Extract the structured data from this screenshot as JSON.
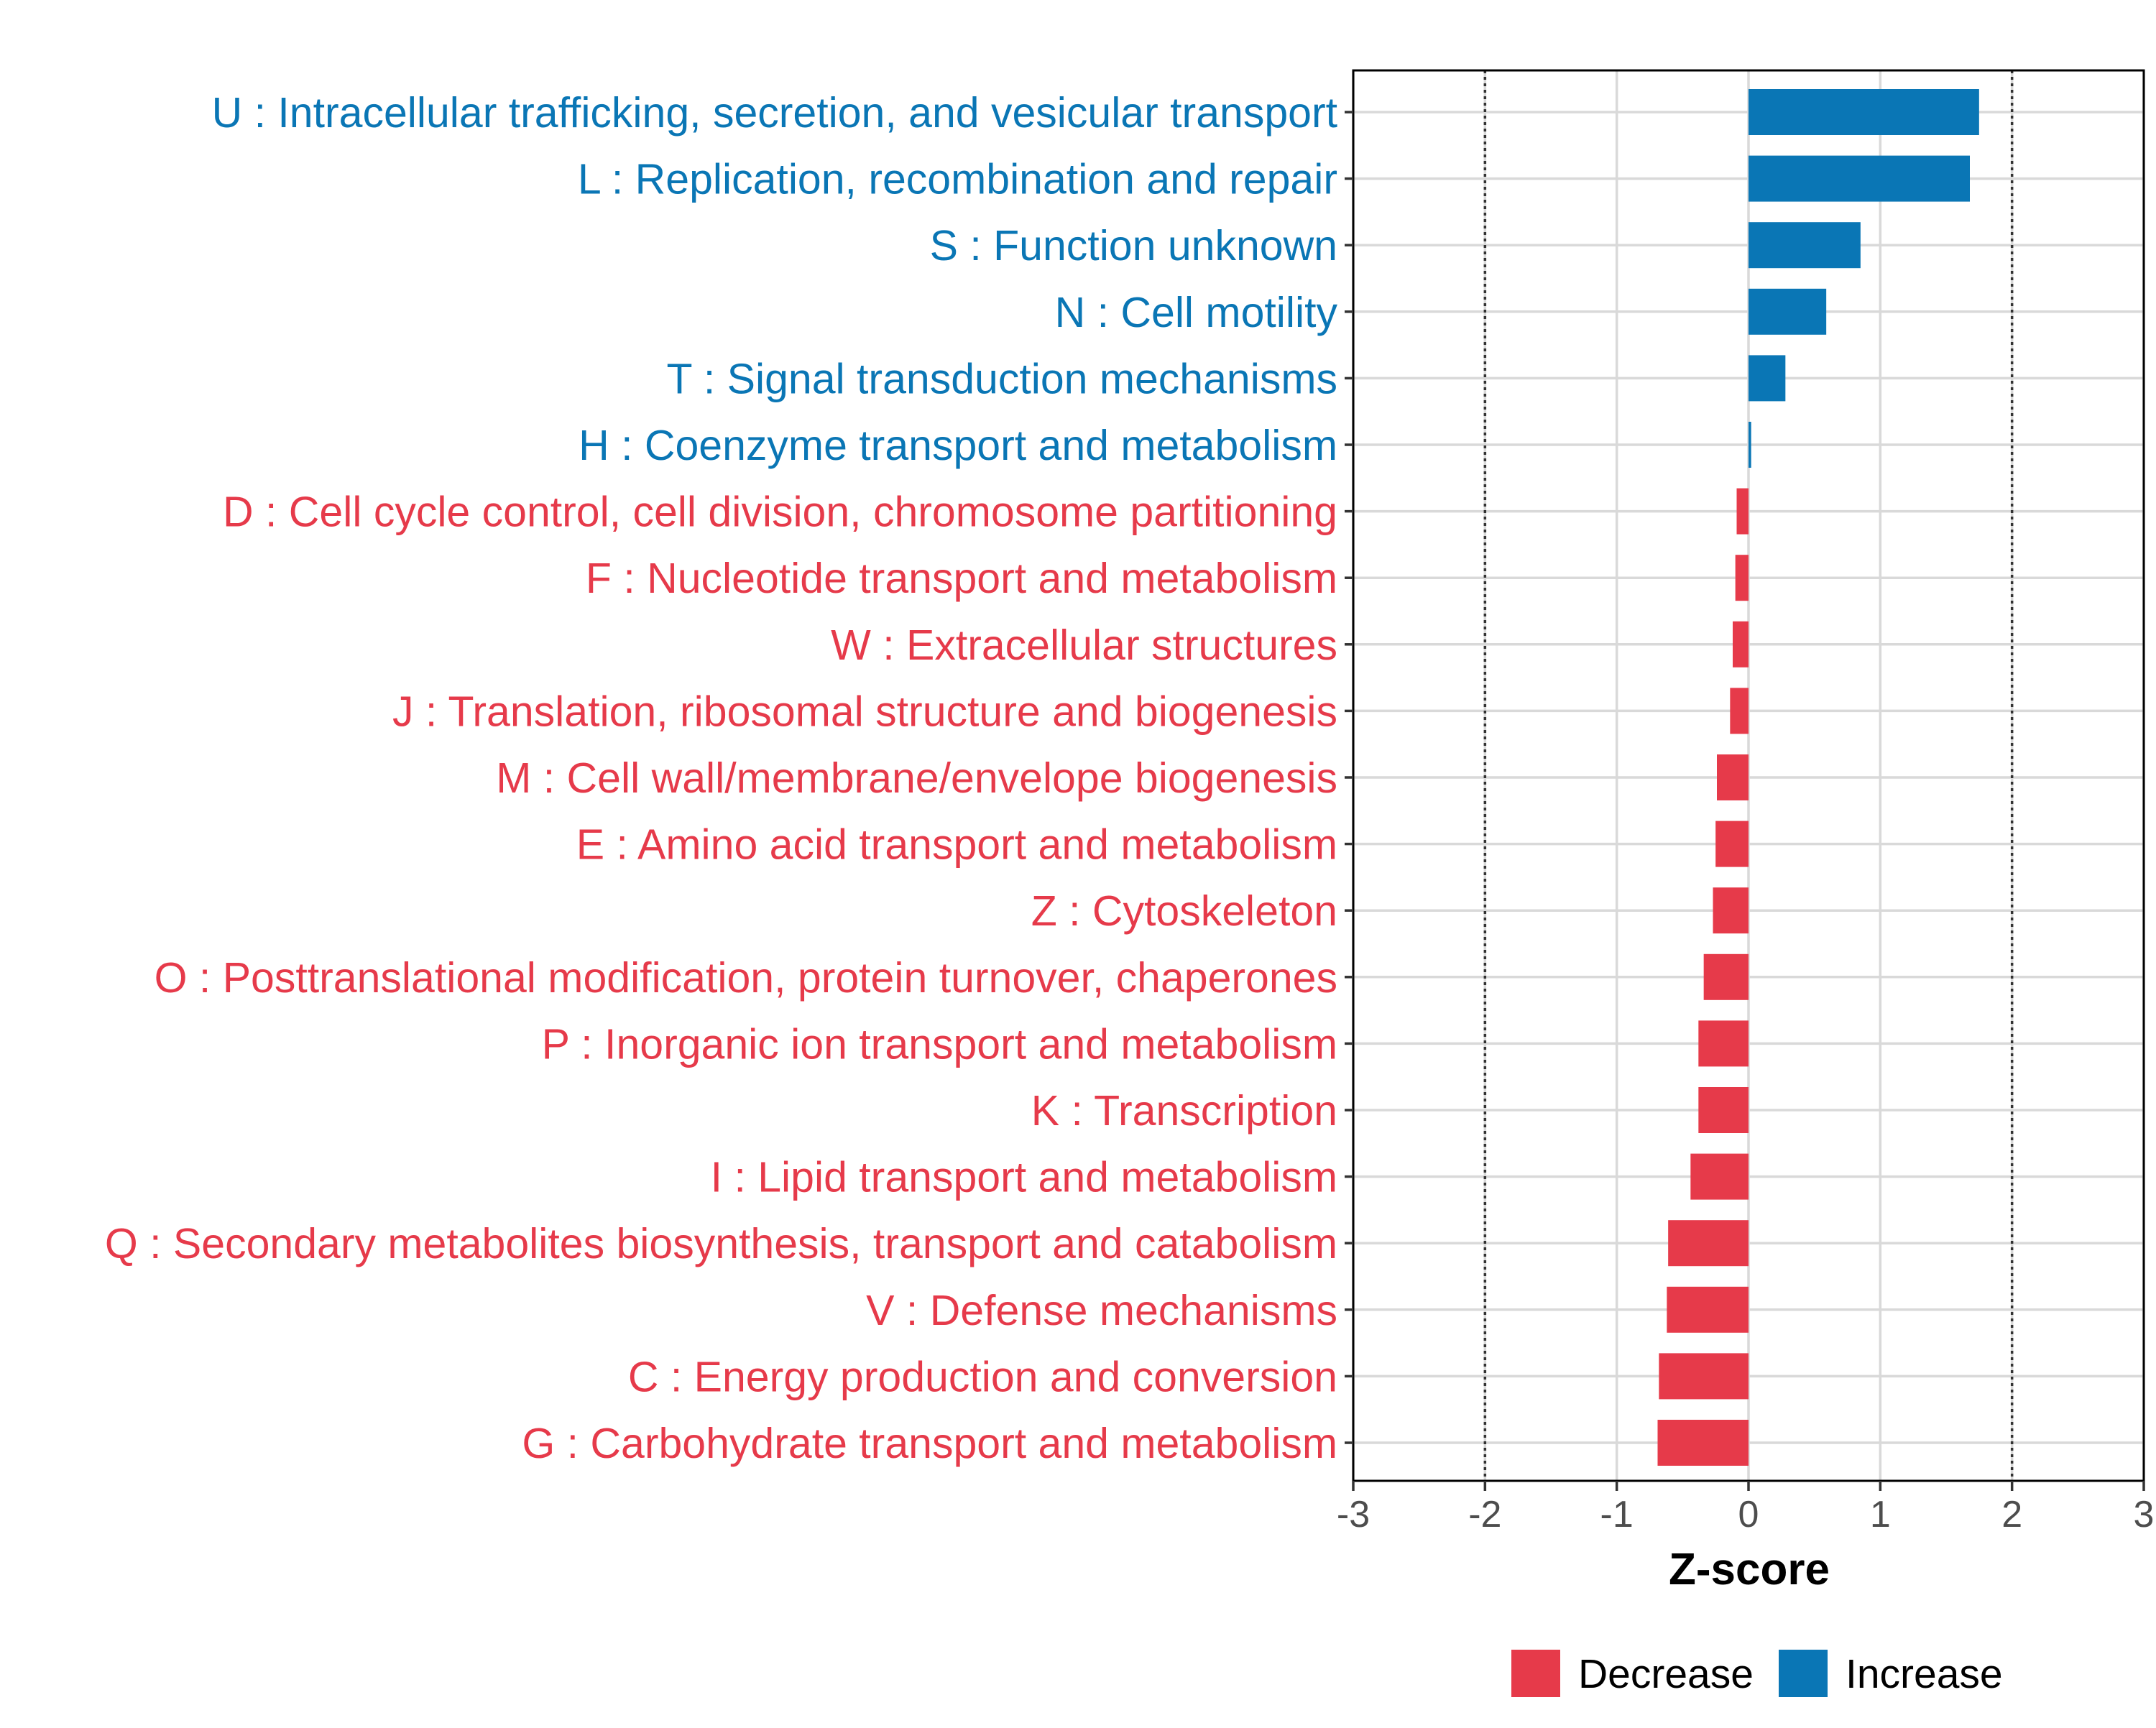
{
  "chart_data": {
    "type": "bar",
    "orientation": "horizontal",
    "title": "",
    "xlabel": "Z-score",
    "ylabel": "",
    "xlim": [
      -3,
      3
    ],
    "x_ticks": [
      -3,
      -2,
      -1,
      0,
      1,
      2,
      3
    ],
    "x_tick_labels": [
      "-3",
      "-2",
      "-1",
      "0",
      "1",
      "2",
      "3"
    ],
    "reference_lines": [
      -2,
      2
    ],
    "grid": true,
    "legend_position": "bottom",
    "legend": [
      {
        "label": "Decrease",
        "color": "#e63a4a"
      },
      {
        "label": "Increase",
        "color": "#0a76b5"
      }
    ],
    "categories": [
      "U : Intracellular trafficking, secretion, and vesicular transport",
      "L : Replication, recombination and repair",
      "S : Function unknown",
      "N : Cell motility",
      "T : Signal transduction mechanisms",
      "H : Coenzyme transport and metabolism",
      "D : Cell cycle control, cell division, chromosome partitioning",
      "F : Nucleotide transport and metabolism",
      "W : Extracellular structures",
      "J : Translation, ribosomal structure and biogenesis",
      "M : Cell wall/membrane/envelope biogenesis",
      "E : Amino acid transport and metabolism",
      "Z : Cytoskeleton",
      "O : Posttranslational modification, protein turnover, chaperones",
      "P : Inorganic ion transport and metabolism",
      "K : Transcription",
      "I : Lipid transport and metabolism",
      "Q : Secondary metabolites biosynthesis, transport and catabolism",
      "V : Defense mechanisms",
      "C : Energy production and conversion",
      "G : Carbohydrate transport and metabolism"
    ],
    "values": [
      1.75,
      1.68,
      0.85,
      0.59,
      0.28,
      0.02,
      -0.09,
      -0.1,
      -0.12,
      -0.14,
      -0.24,
      -0.25,
      -0.27,
      -0.34,
      -0.38,
      -0.38,
      -0.44,
      -0.61,
      -0.62,
      -0.68,
      -0.69
    ],
    "groups": [
      "Increase",
      "Increase",
      "Increase",
      "Increase",
      "Increase",
      "Increase",
      "Decrease",
      "Decrease",
      "Decrease",
      "Decrease",
      "Decrease",
      "Decrease",
      "Decrease",
      "Decrease",
      "Decrease",
      "Decrease",
      "Decrease",
      "Decrease",
      "Decrease",
      "Decrease",
      "Decrease"
    ]
  }
}
